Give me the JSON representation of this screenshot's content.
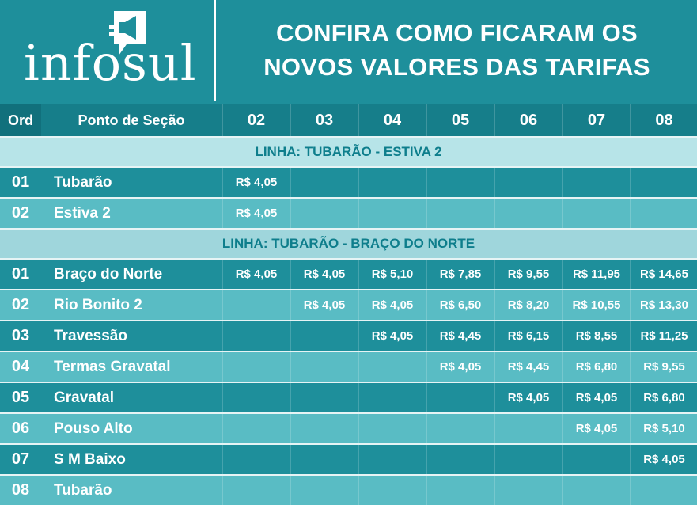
{
  "brand": {
    "name": "infosul"
  },
  "title": {
    "line1": "CONFIRA COMO FICARAM OS",
    "line2": "NOVOS VALORES DAS TARIFAS"
  },
  "columns": {
    "ord": "Ord",
    "name": "Ponto de Seção",
    "sections": [
      "02",
      "03",
      "04",
      "05",
      "06",
      "07",
      "08"
    ]
  },
  "lines": [
    {
      "title": "LINHA: TUBARÃO - ESTIVA 2",
      "rows": [
        {
          "ord": "01",
          "name": "Tubarão",
          "values": [
            "R$ 4,05",
            "",
            "",
            "",
            "",
            "",
            ""
          ]
        },
        {
          "ord": "02",
          "name": "Estiva 2",
          "values": [
            "R$ 4,05",
            "",
            "",
            "",
            "",
            "",
            ""
          ]
        }
      ]
    },
    {
      "title": "LINHA: TUBARÃO - BRAÇO DO NORTE",
      "rows": [
        {
          "ord": "01",
          "name": "Braço do Norte",
          "values": [
            "R$ 4,05",
            "R$ 4,05",
            "R$ 5,10",
            "R$ 7,85",
            "R$ 9,55",
            "R$ 11,95",
            "R$ 14,65"
          ]
        },
        {
          "ord": "02",
          "name": "Rio Bonito 2",
          "values": [
            "",
            "R$ 4,05",
            "R$ 4,05",
            "R$ 6,50",
            "R$ 8,20",
            "R$ 10,55",
            "R$ 13,30"
          ]
        },
        {
          "ord": "03",
          "name": "Travessão",
          "values": [
            "",
            "",
            "R$ 4,05",
            "R$ 4,45",
            "R$ 6,15",
            "R$ 8,55",
            "R$ 11,25"
          ]
        },
        {
          "ord": "04",
          "name": "Termas Gravatal",
          "values": [
            "",
            "",
            "",
            "R$ 4,05",
            "R$ 4,45",
            "R$ 6,80",
            "R$ 9,55"
          ]
        },
        {
          "ord": "05",
          "name": "Gravatal",
          "values": [
            "",
            "",
            "",
            "",
            "R$ 4,05",
            "R$ 4,05",
            "R$ 6,80"
          ]
        },
        {
          "ord": "06",
          "name": "Pouso Alto",
          "values": [
            "",
            "",
            "",
            "",
            "",
            "R$ 4,05",
            "R$ 5,10"
          ]
        },
        {
          "ord": "07",
          "name": "S M Baixo",
          "values": [
            "",
            "",
            "",
            "",
            "",
            "",
            "R$ 4,05"
          ]
        },
        {
          "ord": "08",
          "name": "Tubarão",
          "values": [
            "",
            "",
            "",
            "",
            "",
            "",
            ""
          ]
        }
      ]
    }
  ]
}
